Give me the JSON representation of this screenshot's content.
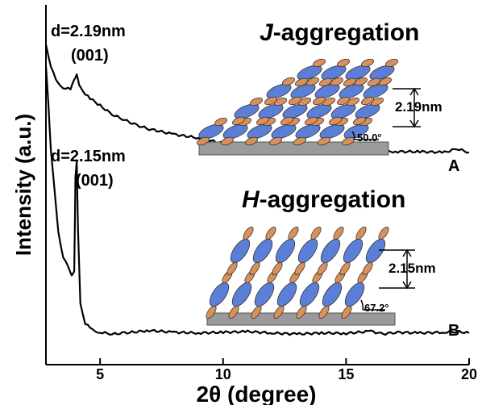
{
  "chart_data": {
    "type": "line",
    "title": "",
    "xlabel": "2θ (degree)",
    "ylabel": "Intensity (a.u.)",
    "xlim": [
      2.8,
      20
    ],
    "ylim": [
      0,
      1
    ],
    "xticks": [
      5,
      10,
      15,
      20
    ],
    "yticks": [],
    "grid": false,
    "colors": {
      "line": "#000000",
      "substrate": "#9a9a9a",
      "molecule_blue": "#5b7fd6",
      "molecule_orange": "#d9905a"
    },
    "series": [
      {
        "name": "A",
        "x": [
          2.8,
          3.0,
          3.2,
          3.5,
          3.8,
          3.95,
          4.05,
          4.15,
          4.3,
          4.6,
          5.0,
          5.5,
          6.0,
          6.5,
          7.0,
          8.0,
          9.0,
          10.0,
          11.0,
          12.0,
          13.0,
          14.0,
          15.0,
          16.0,
          17.0,
          18.0,
          19.0,
          19.5,
          20.0
        ],
        "y": [
          0.89,
          0.83,
          0.79,
          0.77,
          0.765,
          0.79,
          0.81,
          0.775,
          0.76,
          0.74,
          0.72,
          0.695,
          0.68,
          0.665,
          0.655,
          0.64,
          0.63,
          0.615,
          0.61,
          0.605,
          0.603,
          0.598,
          0.6,
          0.595,
          0.592,
          0.592,
          0.59,
          0.6,
          0.59
        ]
      },
      {
        "name": "B",
        "x": [
          2.8,
          2.9,
          3.0,
          3.1,
          3.3,
          3.5,
          3.7,
          3.85,
          3.95,
          4.0,
          4.05,
          4.1,
          4.2,
          4.4,
          4.7,
          5.0,
          5.5,
          6.0,
          7.0,
          8.0,
          9.0,
          10.0,
          11.0,
          12.0,
          13.0,
          14.0,
          15.0,
          16.0,
          16.5,
          17.0,
          18.0,
          19.0,
          19.5,
          20.0
        ],
        "y": [
          0.83,
          0.72,
          0.6,
          0.52,
          0.37,
          0.3,
          0.27,
          0.25,
          0.26,
          0.52,
          0.57,
          0.38,
          0.17,
          0.115,
          0.095,
          0.09,
          0.085,
          0.088,
          0.095,
          0.09,
          0.088,
          0.09,
          0.092,
          0.088,
          0.085,
          0.088,
          0.087,
          0.093,
          0.085,
          0.09,
          0.088,
          0.09,
          0.092,
          0.088
        ]
      }
    ],
    "annotations": {
      "a_d": "d=2.19nm",
      "a_hkl": "(001)",
      "b_d": "d=2.15nm",
      "b_hkl": "(001)",
      "label_A": "A",
      "label_B": "B",
      "j_italic": "J",
      "j_rest": "-aggregation",
      "h_italic": "H",
      "h_rest": "-aggregation",
      "j_spacing": "2.19nm",
      "j_angle": "50.0°",
      "h_spacing": "2.15nm",
      "h_angle": "67.2°"
    }
  }
}
